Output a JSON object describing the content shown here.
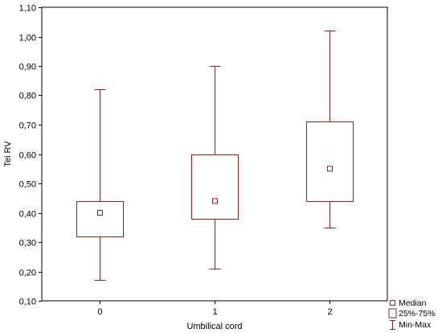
{
  "chart_data": {
    "type": "boxplot",
    "xlabel": "Umbilical cord",
    "ylabel": "Tei RV",
    "ylim": [
      0.1,
      1.1
    ],
    "yticks": [
      "0,10",
      "0,20",
      "0,30",
      "0,40",
      "0,50",
      "0,60",
      "0,70",
      "0,80",
      "0,90",
      "1,00",
      "1,10"
    ],
    "ytick_values": [
      0.1,
      0.2,
      0.3,
      0.4,
      0.5,
      0.6,
      0.7,
      0.8,
      0.9,
      1.0,
      1.1
    ],
    "categories": [
      "0",
      "1",
      "2"
    ],
    "boxes": [
      {
        "category": "0",
        "min": 0.17,
        "q1": 0.32,
        "median": 0.4,
        "q3": 0.44,
        "max": 0.82
      },
      {
        "category": "1",
        "min": 0.21,
        "q1": 0.38,
        "median": 0.44,
        "q3": 0.6,
        "max": 0.9
      },
      {
        "category": "2",
        "min": 0.35,
        "q1": 0.44,
        "median": 0.55,
        "q3": 0.71,
        "max": 1.02
      }
    ],
    "legend": {
      "position": "bottom-right",
      "median_label": "Median",
      "box_label": "25%-75%",
      "whisker_label": "Min-Max"
    },
    "grid": false,
    "color": "#9b1c1c"
  }
}
